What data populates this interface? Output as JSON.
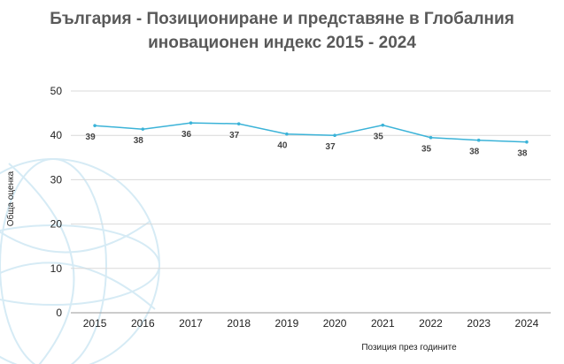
{
  "chart_data": {
    "type": "line",
    "title_lines": [
      "България - Позициониране и представяне в Глобалния",
      "иновационен индекс 2015 - 2024"
    ],
    "xlabel": "Позиция през годините",
    "ylabel": "Обща оценка",
    "x": [
      "2015",
      "2016",
      "2017",
      "2018",
      "2019",
      "2020",
      "2021",
      "2022",
      "2023",
      "2024"
    ],
    "series": [
      {
        "values": [
          42.2,
          41.4,
          42.8,
          42.6,
          40.3,
          40.0,
          42.3,
          39.5,
          38.9,
          38.5
        ],
        "data_labels": [
          "39",
          "38",
          "36",
          "37",
          "40",
          "37",
          "35",
          "35",
          "38",
          "38"
        ],
        "color": "#3bb3d8"
      }
    ],
    "ylim": [
      0,
      50
    ],
    "yticks": [
      "0",
      "10",
      "20",
      "30",
      "40",
      "50"
    ],
    "grid": true,
    "legend": "none"
  },
  "colors": {
    "title": "#595959",
    "grid": "#d9d9d9",
    "line": "#3bb3d8",
    "watermark": "#d6ebf5"
  }
}
